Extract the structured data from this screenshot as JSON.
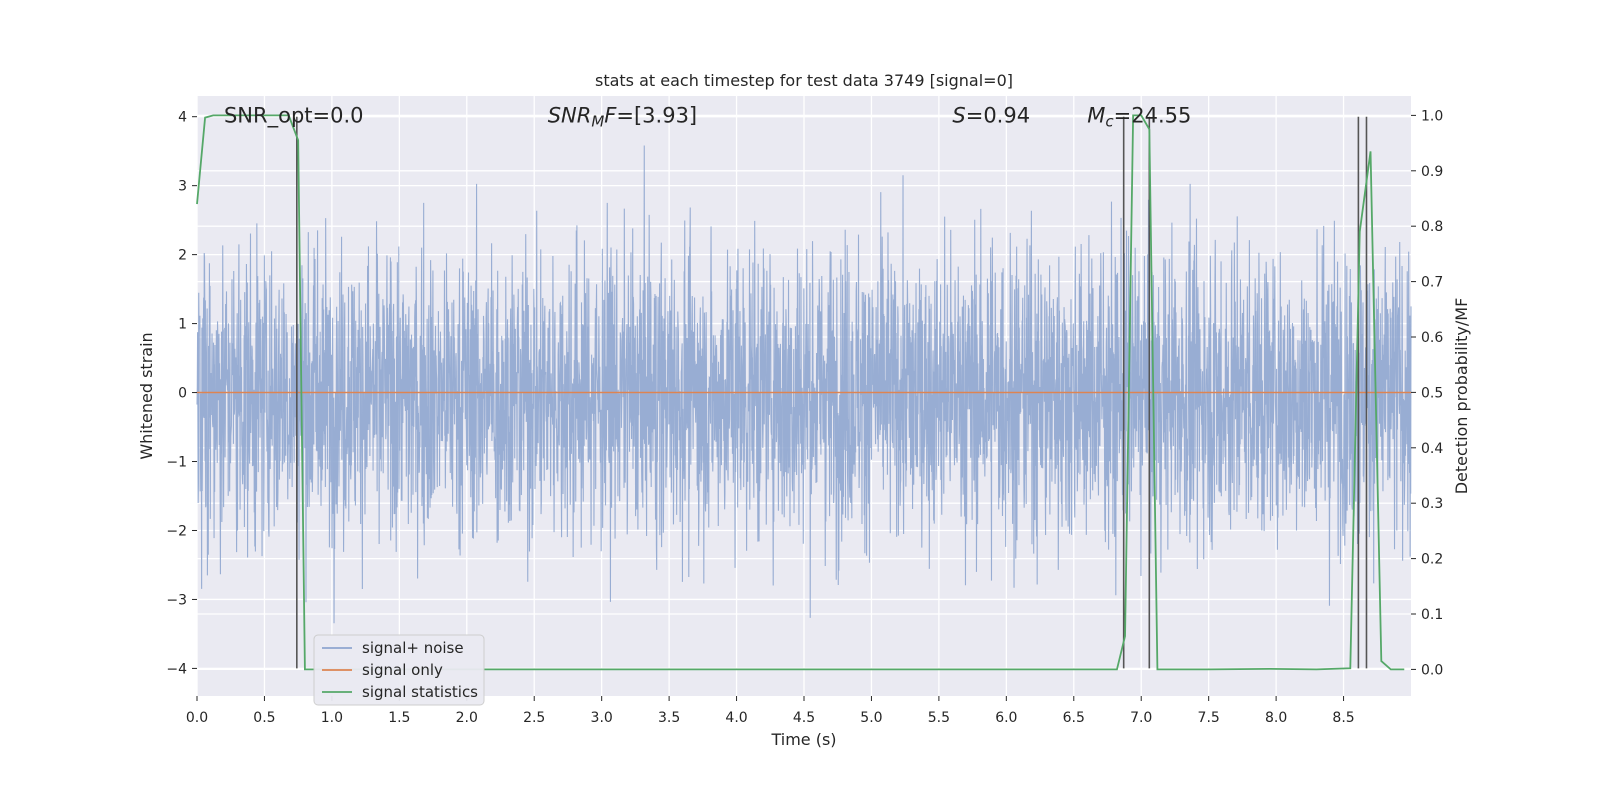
{
  "chart_data": {
    "type": "line",
    "title": "stats at each timestep for test data 3749 [signal=0]",
    "xlabel": "Time (s)",
    "ylabel": "Whitened strain",
    "y2label": "Detection probability/MF",
    "xlim": [
      0,
      9
    ],
    "ylim": [
      -4.4,
      4.3
    ],
    "y2lim": [
      -0.048,
      1.035
    ],
    "x_ticks": [
      0.0,
      0.5,
      1.0,
      1.5,
      2.0,
      2.5,
      3.0,
      3.5,
      4.0,
      4.5,
      5.0,
      5.5,
      6.0,
      6.5,
      7.0,
      7.5,
      8.0,
      8.5
    ],
    "y_ticks": [
      -4,
      -3,
      -2,
      -1,
      0,
      1,
      2,
      3,
      4
    ],
    "y2_ticks": [
      0.0,
      0.1,
      0.2,
      0.3,
      0.4,
      0.5,
      0.6,
      0.7,
      0.8,
      0.9,
      1.0
    ],
    "grid": true,
    "legend_position": "lower-left",
    "annotations": [
      {
        "text": "SNR_opt=0.0",
        "x": 0.2,
        "y": 4.0
      },
      {
        "text": "SNR_MF=[3.93]",
        "x": 2.6,
        "y": 4.0,
        "parts": [
          {
            "t": "SNR",
            "style": "italic"
          },
          {
            "t": "M",
            "style": "italic-sub"
          },
          {
            "t": "F",
            "style": "italic"
          },
          {
            "t": "=[3.93]",
            "style": "normal"
          }
        ]
      },
      {
        "text": "S=0.94",
        "x": 5.6,
        "y": 4.0,
        "parts": [
          {
            "t": "S",
            "style": "italic"
          },
          {
            "t": "=0.94",
            "style": "normal"
          }
        ]
      },
      {
        "text": "M_c=24.55",
        "x": 6.6,
        "y": 4.0,
        "parts": [
          {
            "t": "M",
            "style": "italic"
          },
          {
            "t": "c",
            "style": "italic-sub"
          },
          {
            "t": "=24.55",
            "style": "normal"
          }
        ]
      }
    ],
    "series": [
      {
        "name": "signal+ noise",
        "color": "#8fa6cf",
        "kind": "noise",
        "x_range": [
          0,
          9
        ],
        "approx_typical_abs": 1.7,
        "approx_peak_abs": 3.9
      },
      {
        "name": "signal only",
        "color": "#dd8452",
        "x": [
          0,
          9
        ],
        "y": [
          0,
          0
        ]
      },
      {
        "name": "signal statistics",
        "color": "#55a868",
        "axis": "y2",
        "x": [
          0.0,
          0.06,
          0.12,
          0.2,
          0.3,
          0.4,
          0.5,
          0.6,
          0.68,
          0.75,
          0.8,
          0.86,
          1.0,
          2.0,
          3.0,
          4.0,
          5.0,
          6.0,
          6.5,
          6.82,
          6.88,
          6.94,
          7.0,
          7.06,
          7.12,
          7.5,
          7.95,
          8.3,
          8.55,
          8.62,
          8.7,
          8.78,
          8.85,
          8.95
        ],
        "y": [
          0.84,
          0.996,
          1.0,
          1.0,
          1.0,
          1.0,
          1.0,
          1.0,
          1.0,
          0.955,
          0.0,
          0.0,
          0.0,
          0.0,
          0.0,
          0.0,
          0.0,
          0.0,
          0.0,
          0.0,
          0.06,
          1.0,
          1.0,
          0.975,
          0.0,
          0.0,
          0.001,
          0.0,
          0.002,
          0.79,
          0.935,
          0.015,
          0.0,
          0.0
        ]
      }
    ],
    "vertical_lines": {
      "color": "#555555",
      "x": [
        0.74,
        6.87,
        7.06,
        8.61,
        8.67
      ],
      "y_range": [
        -4.0,
        4.0
      ]
    }
  }
}
